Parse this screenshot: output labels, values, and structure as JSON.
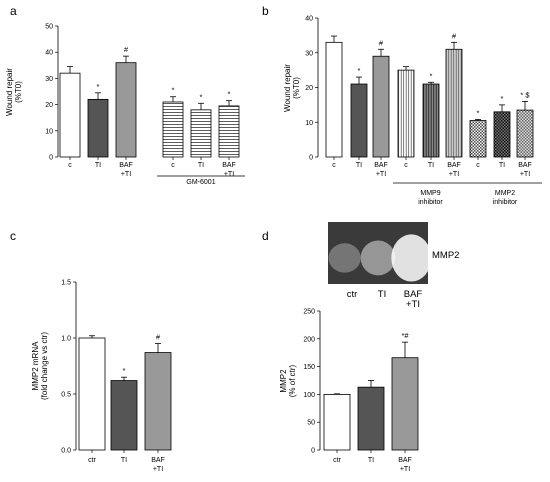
{
  "chart_data": [
    {
      "panel": "a",
      "type": "bar",
      "ylabel": "Wound repair\n(%T0)",
      "ylim": [
        0,
        50
      ],
      "yticks": [
        0,
        10,
        20,
        30,
        40,
        50
      ],
      "bars": [
        {
          "label": "c",
          "value": 32,
          "err": 2.5,
          "fill": "white",
          "annot": ""
        },
        {
          "label": "TI",
          "value": 22,
          "err": 2.5,
          "fill": "#555555",
          "annot": "*"
        },
        {
          "label": "BAF\n+TI",
          "value": 36,
          "err": 2.5,
          "fill": "#999999",
          "annot": "#"
        },
        {
          "label": "c",
          "value": 21,
          "err": 2,
          "fill": "hstripe",
          "annot": "*"
        },
        {
          "label": "TI",
          "value": 18,
          "err": 2.5,
          "fill": "hstripe",
          "annot": "*"
        },
        {
          "label": "BAF\n+TI",
          "value": 19.5,
          "err": 2,
          "fill": "hstripe",
          "annot": "*"
        }
      ],
      "groups": [
        {
          "label": "GM-6001",
          "from": 3,
          "to": 5
        }
      ]
    },
    {
      "panel": "b",
      "type": "bar",
      "ylabel": "Wound repair\n(%T0)",
      "ylim": [
        0,
        40
      ],
      "yticks": [
        0,
        10,
        20,
        30,
        40
      ],
      "bars": [
        {
          "label": "c",
          "value": 33,
          "err": 1.8,
          "fill": "white",
          "annot": ""
        },
        {
          "label": "TI",
          "value": 21,
          "err": 2,
          "fill": "#555555",
          "annot": "*"
        },
        {
          "label": "BAF\n+TI",
          "value": 29,
          "err": 2,
          "fill": "#999999",
          "annot": "#"
        },
        {
          "label": "c",
          "value": 25,
          "err": 1,
          "fill": "vstripe",
          "annot": ""
        },
        {
          "label": "TI",
          "value": 21,
          "err": 0.5,
          "fill": "vstripe-dark",
          "annot": "*"
        },
        {
          "label": "BAF\n+TI",
          "value": 31,
          "err": 2,
          "fill": "vstripe-grey",
          "annot": "#"
        },
        {
          "label": "c",
          "value": 10.5,
          "err": 0.3,
          "fill": "check",
          "annot": "*"
        },
        {
          "label": "TI",
          "value": 13,
          "err": 2,
          "fill": "check-dark",
          "annot": "*"
        },
        {
          "label": "BAF\n+TI",
          "value": 13.5,
          "err": 2.5,
          "fill": "check-grey",
          "annot": "* $"
        }
      ],
      "groups": [
        {
          "label": "MMP9\ninhibitor",
          "from": 3,
          "to": 5
        },
        {
          "label": "MMP2\ninhibitor",
          "from": 6,
          "to": 8
        }
      ]
    },
    {
      "panel": "c",
      "type": "bar",
      "ylabel": "MMP2 mRNA\n(fold change vs ctr)",
      "ylim": [
        0,
        1.5
      ],
      "yticks": [
        0,
        0.5,
        1.0,
        1.5
      ],
      "ytick_labels": [
        "0.0",
        "0.5",
        "1.0",
        "1.5"
      ],
      "bars": [
        {
          "label": "ctr",
          "value": 1.0,
          "err": 0.02,
          "fill": "white",
          "annot": ""
        },
        {
          "label": "TI",
          "value": 0.62,
          "err": 0.03,
          "fill": "#555555",
          "annot": "*"
        },
        {
          "label": "BAF\n+TI",
          "value": 0.87,
          "err": 0.08,
          "fill": "#999999",
          "annot": "#"
        }
      ]
    },
    {
      "panel": "d",
      "type": "bar",
      "ylabel": "MMP2\n(% of ctr)",
      "ylim": [
        0,
        250
      ],
      "yticks": [
        0,
        50,
        100,
        150,
        200,
        250
      ],
      "bars": [
        {
          "label": "ctr",
          "value": 100,
          "err": 1,
          "fill": "white",
          "annot": ""
        },
        {
          "label": "TI",
          "value": 113,
          "err": 12,
          "fill": "#555555",
          "annot": ""
        },
        {
          "label": "BAF\n+TI",
          "value": 166,
          "err": 28,
          "fill": "#999999",
          "annot": "*#"
        }
      ],
      "blot": {
        "label": "MMP2",
        "lanes": [
          "ctr",
          "TI",
          "BAF\n+TI"
        ],
        "intensities": [
          0.35,
          0.55,
          1.0
        ]
      }
    }
  ]
}
